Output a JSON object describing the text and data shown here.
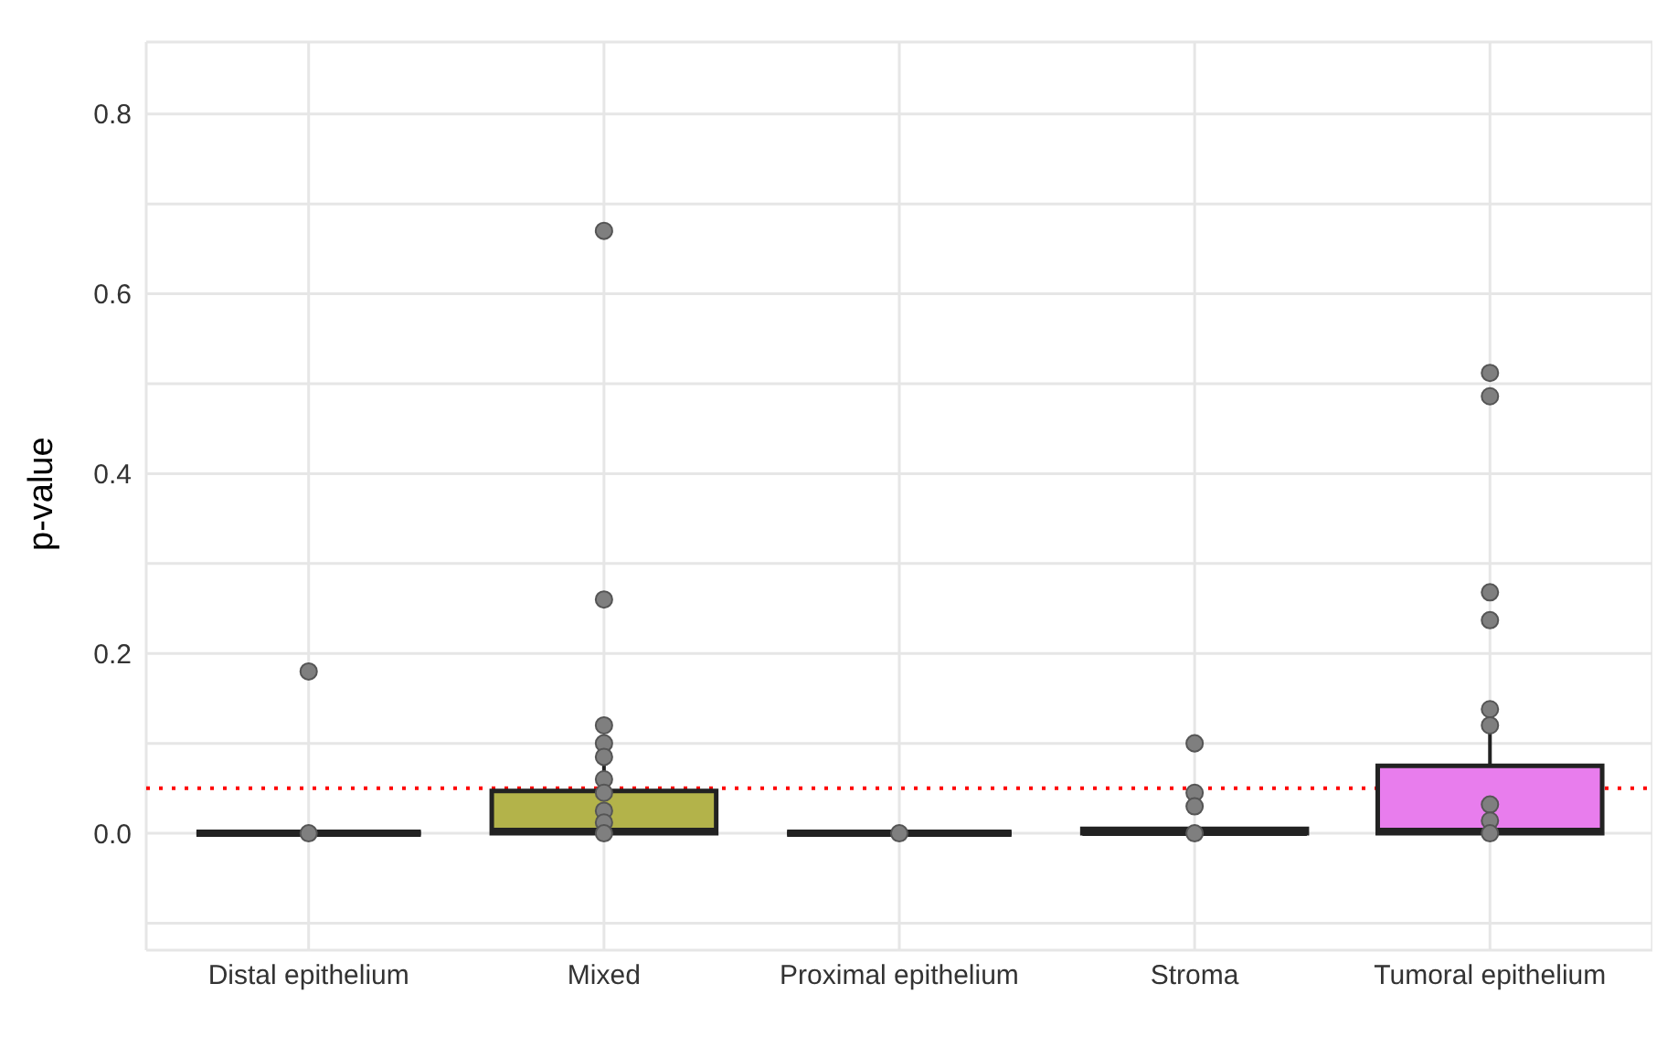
{
  "chart_data": {
    "type": "box",
    "ylabel": "p-value",
    "categories": [
      "Distal epithelium",
      "Mixed",
      "Proximal epithelium",
      "Stroma",
      "Tumoral epithelium"
    ],
    "boxes": [
      {
        "low": 0,
        "q1": 0,
        "median": 0,
        "q3": 0,
        "high": 0
      },
      {
        "low": 0,
        "q1": 0,
        "median": 0.002,
        "q3": 0.047,
        "high": 0.1
      },
      {
        "low": 0,
        "q1": 0,
        "median": 0,
        "q3": 0,
        "high": 0
      },
      {
        "low": 0,
        "q1": 0,
        "median": 0.001,
        "q3": 0.005,
        "high": 0.005
      },
      {
        "low": 0,
        "q1": 0,
        "median": 0.002,
        "q3": 0.075,
        "high": 0.135
      }
    ],
    "colors": [
      "#222222",
      "#b3b34a",
      "#222222",
      "#222222",
      "#e87ded"
    ],
    "series": [
      {
        "type": "scatter",
        "color": "#7f7f7f",
        "x": [
          "Distal epithelium",
          "Distal epithelium",
          "Mixed",
          "Mixed",
          "Mixed",
          "Mixed",
          "Mixed",
          "Mixed",
          "Mixed",
          "Mixed",
          "Mixed",
          "Mixed",
          "Proximal epithelium",
          "Stroma",
          "Stroma",
          "Stroma",
          "Stroma",
          "Tumoral epithelium",
          "Tumoral epithelium",
          "Tumoral epithelium",
          "Tumoral epithelium",
          "Tumoral epithelium",
          "Tumoral epithelium",
          "Tumoral epithelium",
          "Tumoral epithelium",
          "Tumoral epithelium"
        ],
        "values": [
          0.18,
          0,
          0.67,
          0.26,
          0.12,
          0.1,
          0.085,
          0.06,
          0.045,
          0.025,
          0.012,
          0,
          0,
          0.1,
          0.045,
          0.03,
          0,
          0.512,
          0.486,
          0.268,
          0.237,
          0.138,
          0.12,
          0.032,
          0.014,
          0
        ]
      }
    ],
    "ylim": [
      -0.13,
      0.88
    ],
    "yticks": [
      {
        "value": -0.1,
        "label": null
      },
      {
        "value": 0,
        "label": "0.0"
      },
      {
        "value": 0.1,
        "label": null
      },
      0.2,
      {
        "value": 0.3,
        "label": null
      },
      0.4,
      {
        "value": 0.5,
        "label": null
      },
      0.6,
      {
        "value": 0.7,
        "label": null
      },
      0.8
    ],
    "ref_lines": [
      {
        "axis": "y",
        "value": 0.05,
        "color": "#ff0000",
        "line_style": "dotted"
      }
    ],
    "grid": true,
    "legend": false,
    "marker": "circle"
  }
}
